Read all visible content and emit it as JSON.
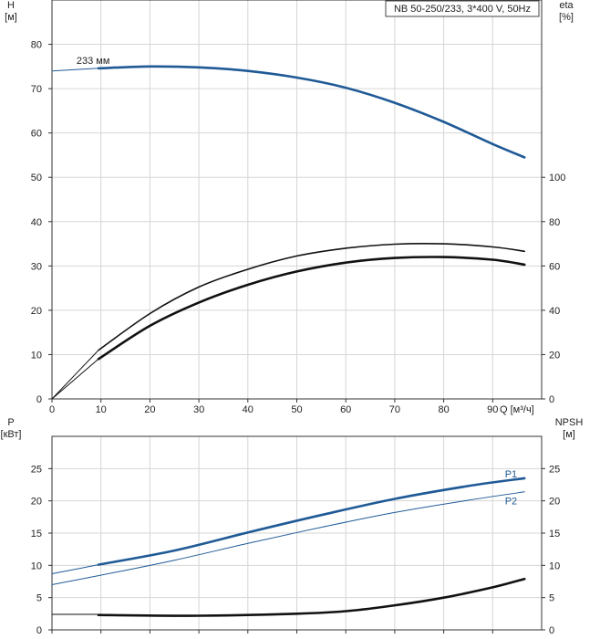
{
  "chart_data": [
    {
      "type": "line",
      "title": "NB 50-250/233, 3*400 V, 50Hz",
      "xlabel": "Q [м³/ч]",
      "ylabel_line1": "H",
      "ylabel_line2": "[м]",
      "y2label_line1": "eta",
      "y2label_line2": "[%]",
      "xlim": [
        0,
        100
      ],
      "ylim": [
        0,
        90
      ],
      "y2lim": [
        0,
        180
      ],
      "xticks": [
        0,
        10,
        20,
        30,
        40,
        50,
        60,
        70,
        80,
        90
      ],
      "yticks": [
        0,
        10,
        20,
        30,
        40,
        50,
        60,
        70,
        80
      ],
      "y2ticks": [
        0,
        20,
        40,
        60,
        80,
        100
      ],
      "grid": true,
      "annotations": [
        {
          "text": "233 мм",
          "x": 5,
          "y": 76
        }
      ],
      "series": [
        {
          "name": "233 мм",
          "axis": "left",
          "color": "#1f5a96",
          "style": "thin",
          "x": [
            0,
            9.5
          ],
          "y": [
            74,
            74.6
          ]
        },
        {
          "name": "233 мм",
          "axis": "left",
          "color": "#1f5a96",
          "style": "thick",
          "x": [
            9.5,
            20,
            30,
            40,
            50,
            60,
            70,
            80,
            90,
            96.5
          ],
          "y": [
            74.6,
            75,
            74.8,
            74,
            72.5,
            70.2,
            66.8,
            62.5,
            57.5,
            54.5
          ]
        },
        {
          "axis": "right",
          "color": "#111111",
          "style": "thin",
          "x": [
            0,
            9.5
          ],
          "y": [
            0,
            22
          ]
        },
        {
          "axis": "right",
          "color": "#111111",
          "style": "medium",
          "x": [
            9.5,
            20,
            30,
            40,
            50,
            60,
            70,
            80,
            90,
            96.5
          ],
          "y": [
            22,
            38.5,
            50.5,
            58.5,
            64.5,
            68,
            69.8,
            70,
            68.6,
            66.6
          ]
        },
        {
          "axis": "right",
          "color": "#111111",
          "style": "thin",
          "x": [
            0,
            9.5
          ],
          "y": [
            0,
            18
          ]
        },
        {
          "axis": "right",
          "color": "#111111",
          "style": "thick",
          "x": [
            9.5,
            20,
            30,
            40,
            50,
            60,
            70,
            80,
            90,
            96.5
          ],
          "y": [
            18,
            33,
            43.5,
            51.5,
            57.5,
            61.5,
            63.6,
            64,
            62.8,
            60.6
          ]
        }
      ]
    },
    {
      "type": "line",
      "ylabel_line1": "P",
      "ylabel_line2": "[кВт]",
      "y2label_line1": "NPSH",
      "y2label_line2": "[м]",
      "xlim": [
        0,
        100
      ],
      "ylim": [
        0,
        30
      ],
      "y2lim": [
        0,
        30
      ],
      "yticks": [
        0,
        5,
        10,
        15,
        20,
        25
      ],
      "y2ticks": [
        0,
        5,
        10,
        15,
        20,
        25
      ],
      "grid": true,
      "series": [
        {
          "name": "P1",
          "axis": "left",
          "color": "#1f5a96",
          "style": "thin",
          "x": [
            0,
            9.5
          ],
          "y": [
            8.7,
            10.1
          ]
        },
        {
          "name": "P1",
          "axis": "left",
          "color": "#1f5a96",
          "style": "thick",
          "x": [
            9.5,
            25,
            40,
            55,
            70,
            85,
            96.5
          ],
          "y": [
            10.1,
            12.3,
            15.1,
            17.8,
            20.3,
            22.3,
            23.5
          ]
        },
        {
          "name": "P2",
          "axis": "left",
          "color": "#1f5a96",
          "style": "thin",
          "x": [
            0,
            9.5,
            25,
            40,
            55,
            70,
            85,
            96.5
          ],
          "y": [
            7,
            8.4,
            10.8,
            13.4,
            15.9,
            18.2,
            20.1,
            21.4
          ]
        },
        {
          "axis": "right",
          "color": "#111111",
          "style": "thin",
          "x": [
            0,
            9.5
          ],
          "y": [
            2.4,
            2.4
          ]
        },
        {
          "axis": "right",
          "color": "#111111",
          "style": "thick",
          "x": [
            9.5,
            30,
            50,
            60,
            70,
            80,
            90,
            96.5
          ],
          "y": [
            2.3,
            2.2,
            2.5,
            2.9,
            3.8,
            5.0,
            6.6,
            7.9
          ]
        }
      ],
      "series_labels": [
        {
          "text": "P1",
          "x": 92.5,
          "y": 24.2
        },
        {
          "text": "P2",
          "x": 92.5,
          "y": 20.0
        }
      ]
    }
  ]
}
